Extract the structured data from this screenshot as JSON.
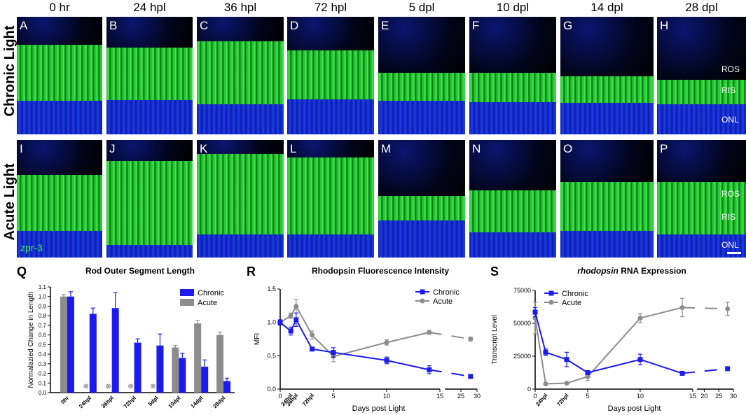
{
  "column_headers": [
    "0 hr",
    "24 hpl",
    "36 hpl",
    "72 hpl",
    "5 dpl",
    "10 dpl",
    "14 dpl",
    "28 dpl"
  ],
  "row_labels": [
    "Chronic Light",
    "Acute Light"
  ],
  "panel_letters_top": [
    "A",
    "B",
    "C",
    "D",
    "E",
    "F",
    "G",
    "H"
  ],
  "panel_letters_bottom": [
    "I",
    "J",
    "K",
    "L",
    "M",
    "N",
    "O",
    "P"
  ],
  "layer_labels": [
    "ROS",
    "RIS",
    "ONL"
  ],
  "stain_label": "zpr-3",
  "colors": {
    "chronic": "#1b1bf0",
    "acute": "#8c8c8c",
    "nuclei": "#1a2ccc",
    "zpr3": "#2ee82e"
  },
  "chart_data": [
    {
      "panel": "Q",
      "type": "bar",
      "title": "Rod Outer Segment Length",
      "ylabel": "Normalazied Change in Length",
      "xlabel": "",
      "ylim": [
        0,
        1.1
      ],
      "yticks": [
        "0.0",
        "0.1",
        "0.2",
        "0.3",
        "0.4",
        "0.5",
        "0.6",
        "0.7",
        "0.8",
        "0.9",
        "1.0",
        "1.1"
      ],
      "categories": [
        "0hr",
        "24hpl",
        "36hpl",
        "72hpl",
        "5dpl",
        "10dpl",
        "14dpl",
        "28dpl"
      ],
      "series": [
        {
          "name": "Acute",
          "values": [
            1.0,
            null,
            null,
            null,
            null,
            0.47,
            0.72,
            0.6
          ],
          "errors": [
            0.02,
            null,
            null,
            null,
            null,
            0.02,
            0.03,
            0.03
          ]
        },
        {
          "name": "Chronic",
          "values": [
            1.0,
            0.82,
            0.88,
            0.52,
            0.49,
            0.36,
            0.27,
            0.12
          ],
          "errors": [
            0.05,
            0.06,
            0.16,
            0.04,
            0.12,
            0.05,
            0.07,
            0.03
          ]
        }
      ],
      "missing_marker": "⊗",
      "legend": "top-right"
    },
    {
      "panel": "R",
      "type": "line",
      "title": "Rhodopsin Fluorescence Intensity",
      "ylabel": "MFI",
      "xlabel": "Days post Light",
      "ylim": [
        0,
        1.5
      ],
      "yticks": [
        "0.0",
        "0.5",
        "1.0",
        "1.5"
      ],
      "xticks_main": [
        "0",
        "5",
        "10",
        "15"
      ],
      "xticks_tail": [
        "25",
        "30"
      ],
      "xticks_special": [
        "24hpl",
        "36hpl",
        "72hpl"
      ],
      "series": [
        {
          "name": "Chronic",
          "x": [
            0,
            1,
            1.5,
            3,
            5,
            10,
            14,
            28
          ],
          "y": [
            1.0,
            0.87,
            1.04,
            0.6,
            0.55,
            0.43,
            0.29,
            0.19
          ],
          "errors": [
            0.04,
            0.06,
            0.1,
            0.02,
            0.07,
            0.05,
            0.06,
            0.02
          ]
        },
        {
          "name": "Acute",
          "x": [
            0,
            1,
            1.5,
            3,
            5,
            10,
            14,
            28
          ],
          "y": [
            1.0,
            1.1,
            1.24,
            0.81,
            0.49,
            0.7,
            0.85,
            0.75
          ],
          "errors": [
            0.03,
            0.04,
            0.1,
            0.06,
            0.08,
            0.04,
            0.03,
            0.03
          ]
        }
      ],
      "legend": "top-right"
    },
    {
      "panel": "S",
      "type": "line",
      "title": "rhodopsin RNA Expression",
      "title_italic_word": "rhodopsin",
      "title_rest": "RNA Expression",
      "ylabel": "Transcript Level",
      "xlabel": "Days post Light",
      "ylim": [
        0,
        75000
      ],
      "yticks": [
        "0",
        "25000",
        "50000",
        "75000"
      ],
      "xticks_main": [
        "0",
        "5",
        "10",
        "15"
      ],
      "xticks_tail": [
        "20",
        "25",
        "30"
      ],
      "xticks_special": [
        "24hpl",
        "72hpl"
      ],
      "series": [
        {
          "name": "Chronic",
          "x": [
            0,
            1,
            3,
            5,
            10,
            14,
            28
          ],
          "y": [
            58500,
            28000,
            22500,
            12500,
            22500,
            12000,
            15500
          ],
          "errors": [
            3500,
            2500,
            5500,
            1500,
            4000,
            1000,
            1000
          ]
        },
        {
          "name": "Acute",
          "x": [
            0,
            1,
            3,
            5,
            10,
            14,
            28
          ],
          "y": [
            54000,
            4000,
            4500,
            9500,
            54000,
            62000,
            61000
          ],
          "errors": [
            12000,
            500,
            500,
            3000,
            3500,
            7000,
            5000
          ]
        }
      ],
      "legend": "top-left"
    }
  ],
  "panel_letters_charts": [
    "Q",
    "R",
    "S"
  ]
}
